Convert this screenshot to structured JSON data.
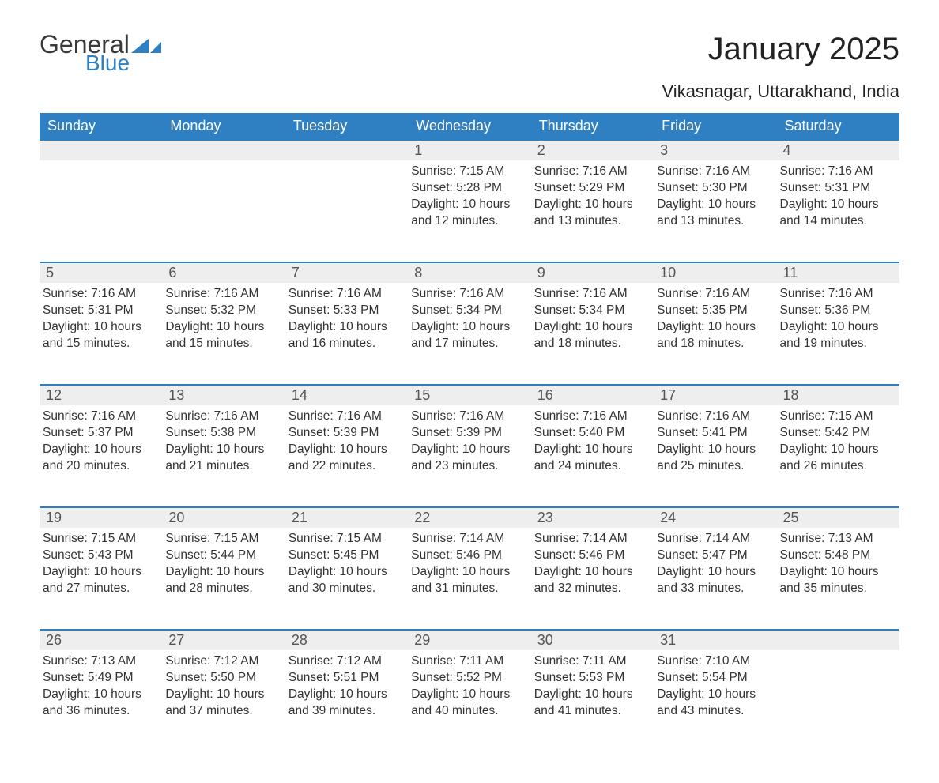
{
  "brand": {
    "text_general": "General",
    "text_blue": "Blue",
    "colors": {
      "general": "#3a3a3a",
      "blue": "#2f7fc3",
      "shape": "#2f7fc3"
    }
  },
  "title": "January 2025",
  "location": "Vikasnagar, Uttarakhand, India",
  "colors": {
    "header_bg": "#2f7fc3",
    "header_text": "#ffffff",
    "daynum_bg": "#eeeeee",
    "daynum_border": "#2f7fc3",
    "daynum_text": "#555555",
    "body_text": "#333333",
    "page_bg": "#ffffff"
  },
  "typography": {
    "title_fontsize": 40,
    "location_fontsize": 22,
    "weekday_fontsize": 18,
    "daynum_fontsize": 18,
    "body_fontsize": 15.5,
    "font_family": "Arial"
  },
  "labels": {
    "sunrise_prefix": "Sunrise: ",
    "sunset_prefix": "Sunset: ",
    "daylight_prefix": "Daylight: "
  },
  "weekdays": [
    "Sunday",
    "Monday",
    "Tuesday",
    "Wednesday",
    "Thursday",
    "Friday",
    "Saturday"
  ],
  "weeks": [
    [
      null,
      null,
      null,
      {
        "day": "1",
        "sunrise": "7:15 AM",
        "sunset": "5:28 PM",
        "daylight": "10 hours and 12 minutes."
      },
      {
        "day": "2",
        "sunrise": "7:16 AM",
        "sunset": "5:29 PM",
        "daylight": "10 hours and 13 minutes."
      },
      {
        "day": "3",
        "sunrise": "7:16 AM",
        "sunset": "5:30 PM",
        "daylight": "10 hours and 13 minutes."
      },
      {
        "day": "4",
        "sunrise": "7:16 AM",
        "sunset": "5:31 PM",
        "daylight": "10 hours and 14 minutes."
      }
    ],
    [
      {
        "day": "5",
        "sunrise": "7:16 AM",
        "sunset": "5:31 PM",
        "daylight": "10 hours and 15 minutes."
      },
      {
        "day": "6",
        "sunrise": "7:16 AM",
        "sunset": "5:32 PM",
        "daylight": "10 hours and 15 minutes."
      },
      {
        "day": "7",
        "sunrise": "7:16 AM",
        "sunset": "5:33 PM",
        "daylight": "10 hours and 16 minutes."
      },
      {
        "day": "8",
        "sunrise": "7:16 AM",
        "sunset": "5:34 PM",
        "daylight": "10 hours and 17 minutes."
      },
      {
        "day": "9",
        "sunrise": "7:16 AM",
        "sunset": "5:34 PM",
        "daylight": "10 hours and 18 minutes."
      },
      {
        "day": "10",
        "sunrise": "7:16 AM",
        "sunset": "5:35 PM",
        "daylight": "10 hours and 18 minutes."
      },
      {
        "day": "11",
        "sunrise": "7:16 AM",
        "sunset": "5:36 PM",
        "daylight": "10 hours and 19 minutes."
      }
    ],
    [
      {
        "day": "12",
        "sunrise": "7:16 AM",
        "sunset": "5:37 PM",
        "daylight": "10 hours and 20 minutes."
      },
      {
        "day": "13",
        "sunrise": "7:16 AM",
        "sunset": "5:38 PM",
        "daylight": "10 hours and 21 minutes."
      },
      {
        "day": "14",
        "sunrise": "7:16 AM",
        "sunset": "5:39 PM",
        "daylight": "10 hours and 22 minutes."
      },
      {
        "day": "15",
        "sunrise": "7:16 AM",
        "sunset": "5:39 PM",
        "daylight": "10 hours and 23 minutes."
      },
      {
        "day": "16",
        "sunrise": "7:16 AM",
        "sunset": "5:40 PM",
        "daylight": "10 hours and 24 minutes."
      },
      {
        "day": "17",
        "sunrise": "7:16 AM",
        "sunset": "5:41 PM",
        "daylight": "10 hours and 25 minutes."
      },
      {
        "day": "18",
        "sunrise": "7:15 AM",
        "sunset": "5:42 PM",
        "daylight": "10 hours and 26 minutes."
      }
    ],
    [
      {
        "day": "19",
        "sunrise": "7:15 AM",
        "sunset": "5:43 PM",
        "daylight": "10 hours and 27 minutes."
      },
      {
        "day": "20",
        "sunrise": "7:15 AM",
        "sunset": "5:44 PM",
        "daylight": "10 hours and 28 minutes."
      },
      {
        "day": "21",
        "sunrise": "7:15 AM",
        "sunset": "5:45 PM",
        "daylight": "10 hours and 30 minutes."
      },
      {
        "day": "22",
        "sunrise": "7:14 AM",
        "sunset": "5:46 PM",
        "daylight": "10 hours and 31 minutes."
      },
      {
        "day": "23",
        "sunrise": "7:14 AM",
        "sunset": "5:46 PM",
        "daylight": "10 hours and 32 minutes."
      },
      {
        "day": "24",
        "sunrise": "7:14 AM",
        "sunset": "5:47 PM",
        "daylight": "10 hours and 33 minutes."
      },
      {
        "day": "25",
        "sunrise": "7:13 AM",
        "sunset": "5:48 PM",
        "daylight": "10 hours and 35 minutes."
      }
    ],
    [
      {
        "day": "26",
        "sunrise": "7:13 AM",
        "sunset": "5:49 PM",
        "daylight": "10 hours and 36 minutes."
      },
      {
        "day": "27",
        "sunrise": "7:12 AM",
        "sunset": "5:50 PM",
        "daylight": "10 hours and 37 minutes."
      },
      {
        "day": "28",
        "sunrise": "7:12 AM",
        "sunset": "5:51 PM",
        "daylight": "10 hours and 39 minutes."
      },
      {
        "day": "29",
        "sunrise": "7:11 AM",
        "sunset": "5:52 PM",
        "daylight": "10 hours and 40 minutes."
      },
      {
        "day": "30",
        "sunrise": "7:11 AM",
        "sunset": "5:53 PM",
        "daylight": "10 hours and 41 minutes."
      },
      {
        "day": "31",
        "sunrise": "7:10 AM",
        "sunset": "5:54 PM",
        "daylight": "10 hours and 43 minutes."
      },
      null
    ]
  ]
}
